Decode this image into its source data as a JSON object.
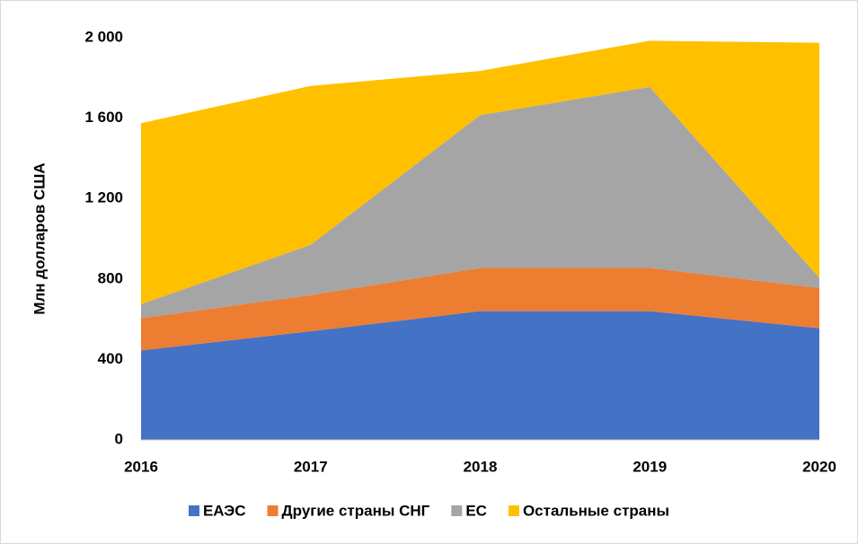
{
  "chart_data": {
    "type": "area",
    "stacked": true,
    "y_label": "Млн долларов США",
    "categories": [
      "2016",
      "2017",
      "2018",
      "2019",
      "2020"
    ],
    "series": [
      {
        "name": "ЕАЭС",
        "color": "#4472c4",
        "values": [
          445,
          540,
          640,
          640,
          555
        ]
      },
      {
        "name": "Другие страны СНГ",
        "color": "#ed7d31",
        "values": [
          160,
          180,
          215,
          215,
          200
        ]
      },
      {
        "name": "ЕС",
        "color": "#a5a5a5",
        "values": [
          70,
          250,
          760,
          900,
          50
        ]
      },
      {
        "name": "Остальные страны",
        "color": "#ffc000",
        "values": [
          900,
          790,
          220,
          230,
          1170
        ]
      }
    ],
    "ylim": [
      0,
      2000
    ],
    "yticks": [
      0,
      400,
      800,
      {
        "value": 1200,
        "label": "1 200"
      },
      {
        "value": 1600,
        "label": "1 600"
      },
      {
        "value": 2000,
        "label": "2 000"
      }
    ],
    "grid": false,
    "legend": "bottom"
  }
}
